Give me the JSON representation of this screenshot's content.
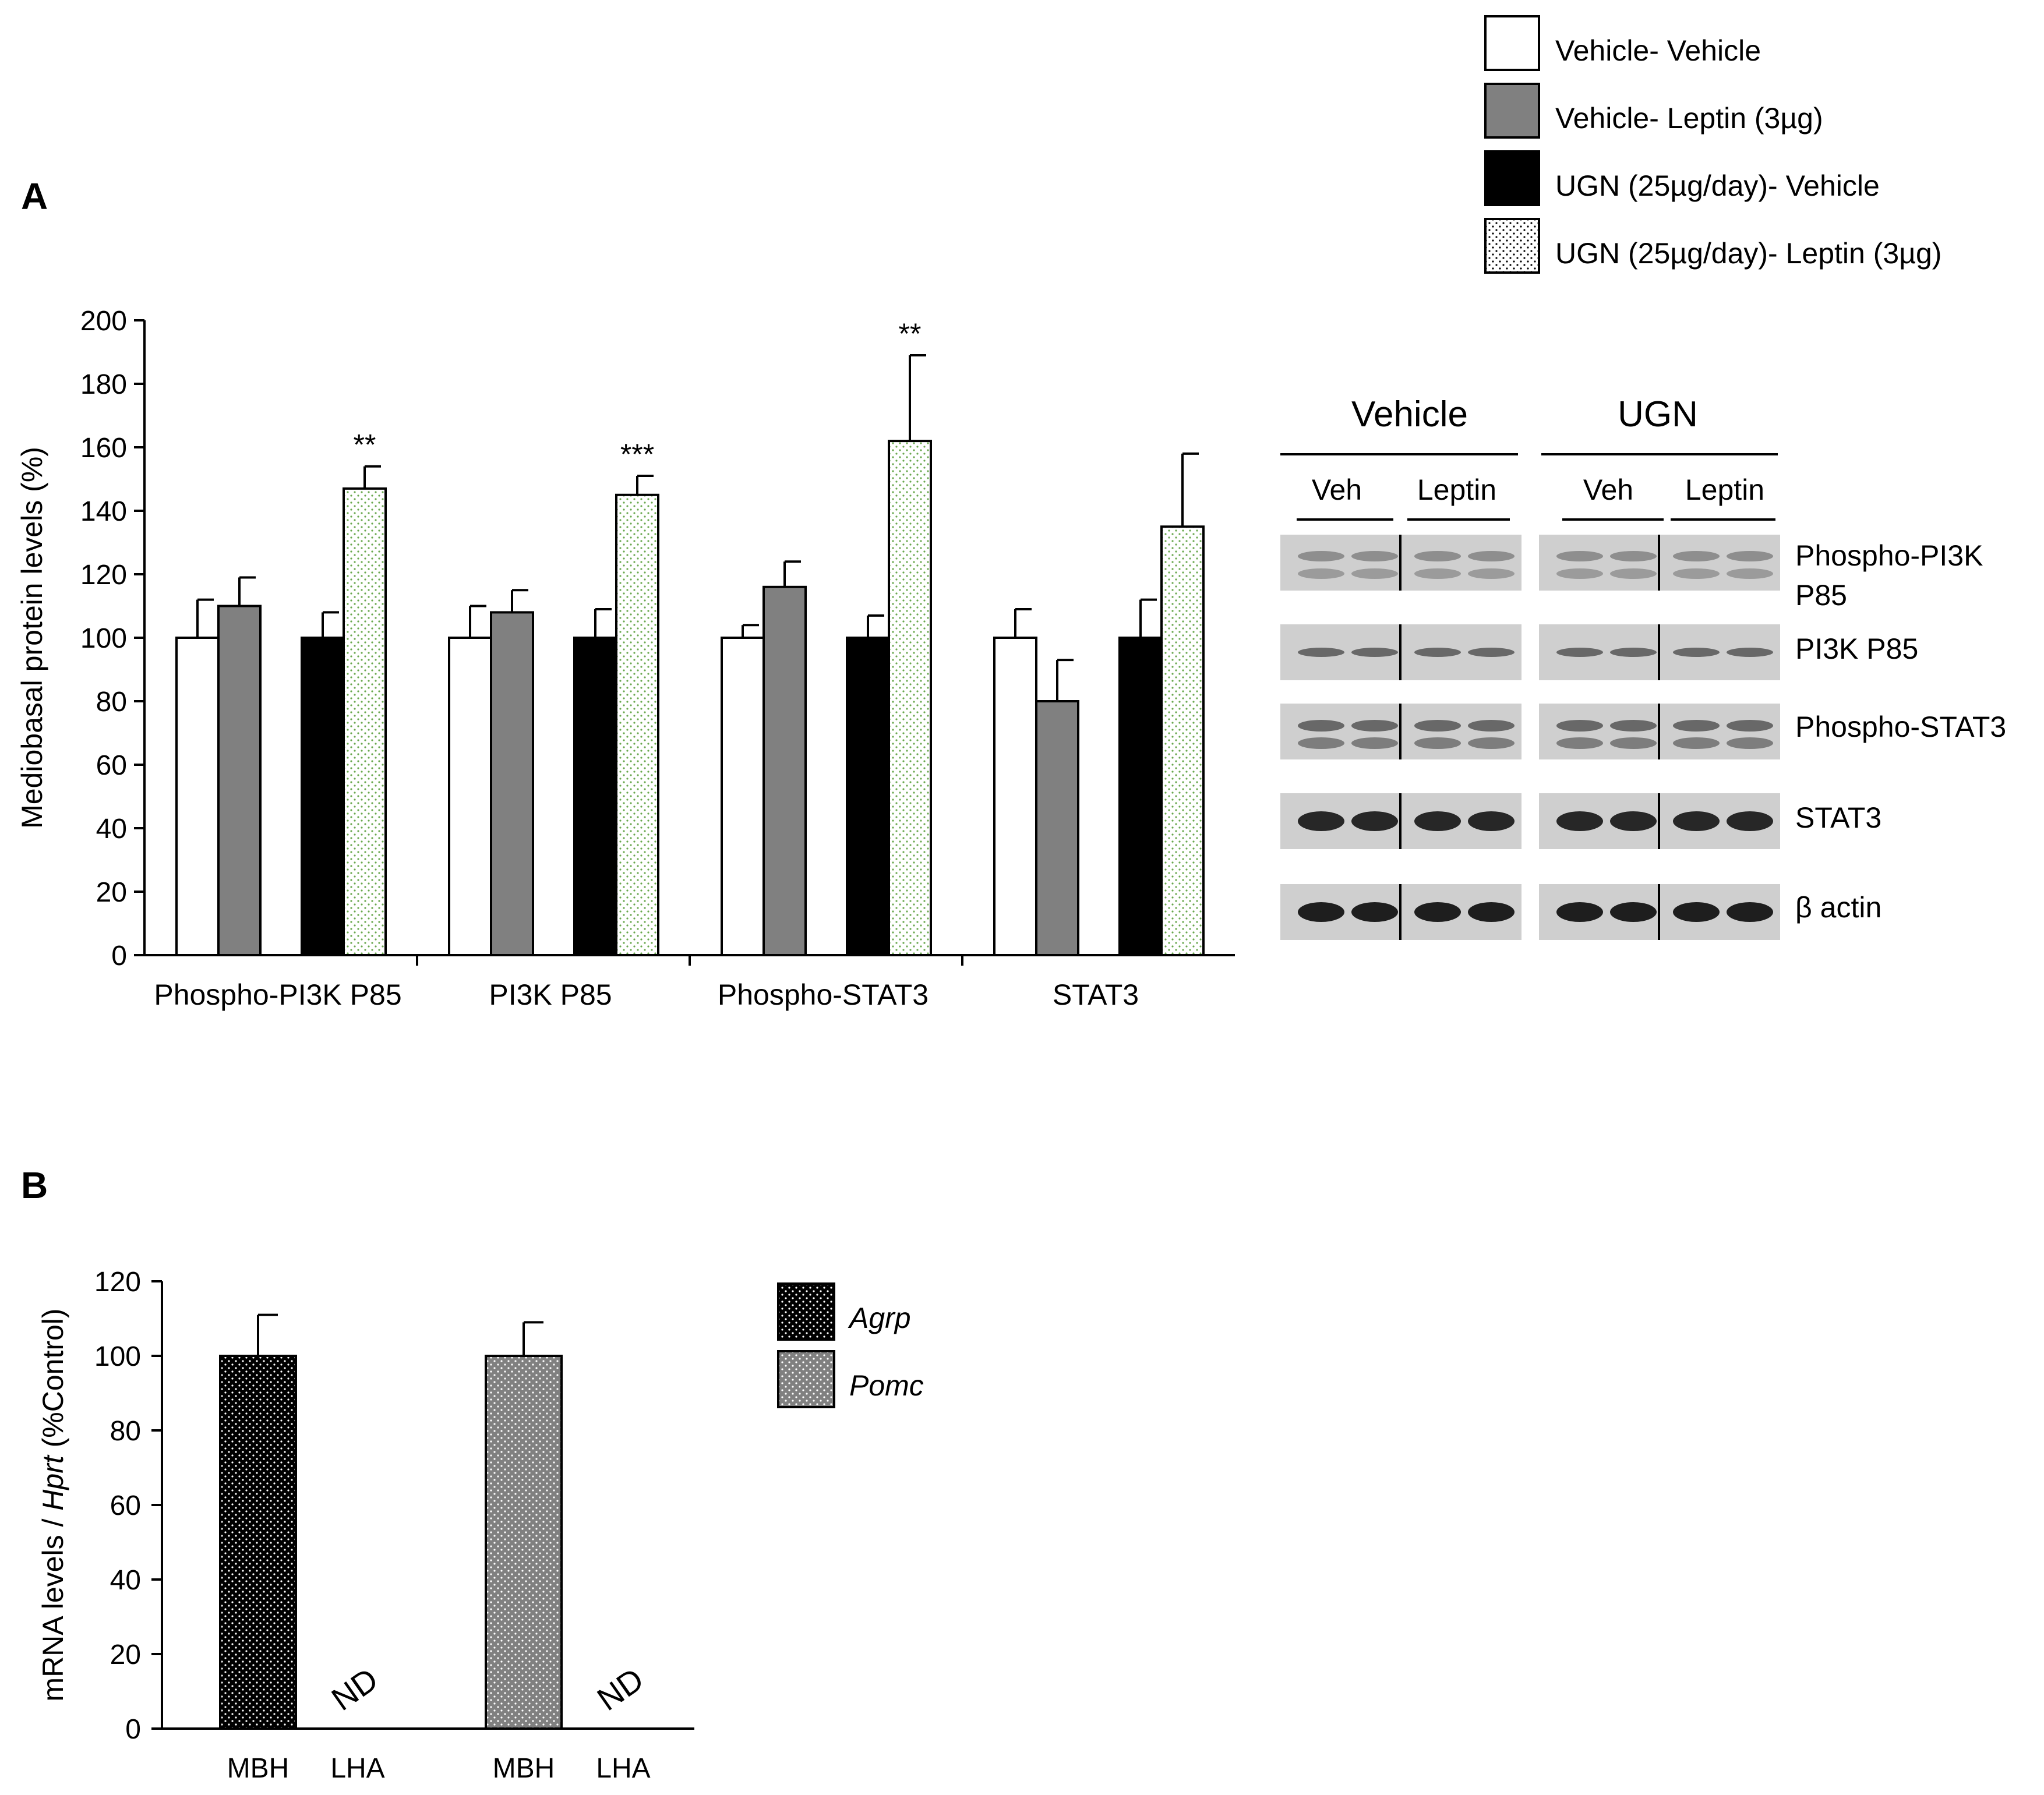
{
  "panel_a_label": "A",
  "panel_b_label": "B",
  "legend_a": [
    {
      "label": "Vehicle- Vehicle",
      "fill": "white"
    },
    {
      "label": "Vehicle- Leptin (3µg)",
      "fill": "gray"
    },
    {
      "label": "UGN (25µg/day)- Vehicle",
      "fill": "black"
    },
    {
      "label": "UGN (25µg/day)- Leptin (3µg)",
      "fill": "dots"
    }
  ],
  "legend_b": [
    {
      "label": "Agrp",
      "fill": "black-dots"
    },
    {
      "label": "Pomc",
      "fill": "gray-dots"
    }
  ],
  "blot": {
    "group_vehicle": "Vehicle",
    "group_ugn": "UGN",
    "veh_1": "Veh",
    "leptin_1": "Leptin",
    "veh_2": "Veh",
    "leptin_2": "Leptin",
    "rows": [
      {
        "label_line1": "Phospho-PI3K",
        "label_line2": "P85"
      },
      {
        "label_line1": "PI3K P85",
        "label_line2": ""
      },
      {
        "label_line1": "Phospho-STAT3",
        "label_line2": ""
      },
      {
        "label_line1": "STAT3",
        "label_line2": ""
      },
      {
        "label_line1": "β actin",
        "label_line2": ""
      }
    ]
  },
  "colors": {
    "gray_bar": "#808080",
    "dots_green": "#6aa84f",
    "blot_bg": "#cfcfcf",
    "band_dark": "#2a2a2a"
  },
  "chart_data": [
    {
      "id": "A",
      "type": "bar",
      "title": "",
      "xlabel": "",
      "ylabel": "Mediobasal protein levels (%)",
      "ylim": [
        0,
        200
      ],
      "yticks": [
        0,
        20,
        40,
        60,
        80,
        100,
        120,
        140,
        160,
        180,
        200
      ],
      "categories": [
        "Phospho-PI3K P85",
        "PI3K P85",
        "Phospho-STAT3",
        "STAT3"
      ],
      "series": [
        {
          "name": "Vehicle- Vehicle",
          "values": [
            100,
            100,
            100,
            100
          ],
          "errors": [
            12,
            10,
            4,
            9
          ]
        },
        {
          "name": "Vehicle- Leptin (3µg)",
          "values": [
            110,
            108,
            116,
            80
          ],
          "errors": [
            9,
            7,
            8,
            13
          ]
        },
        {
          "name": "UGN (25µg/day)- Vehicle",
          "values": [
            100,
            100,
            100,
            100
          ],
          "errors": [
            8,
            9,
            7,
            12
          ]
        },
        {
          "name": "UGN (25µg/day)- Leptin (3µg)",
          "values": [
            147,
            145,
            162,
            135
          ],
          "errors": [
            7,
            6,
            27,
            23
          ]
        }
      ],
      "annotations": [
        {
          "category": "Phospho-PI3K P85",
          "series": "UGN (25µg/day)- Leptin (3µg)",
          "text": "**"
        },
        {
          "category": "PI3K P85",
          "series": "UGN (25µg/day)- Leptin (3µg)",
          "text": "***"
        },
        {
          "category": "Phospho-STAT3",
          "series": "UGN (25µg/day)- Leptin (3µg)",
          "text": "**"
        }
      ]
    },
    {
      "id": "B",
      "type": "bar",
      "title": "",
      "xlabel": "",
      "ylabel_prefix": "mRNA levels / ",
      "ylabel_italic": "Hprt",
      "ylabel_suffix": " (%Control)",
      "ylim": [
        0,
        120
      ],
      "yticks": [
        0,
        20,
        40,
        60,
        80,
        100,
        120
      ],
      "groups": [
        {
          "series": "Agrp",
          "categories": [
            "MBH",
            "LHA"
          ],
          "values": [
            100,
            null
          ],
          "errors": [
            11,
            null
          ],
          "missing_label": "ND"
        },
        {
          "series": "Pomc",
          "categories": [
            "MBH",
            "LHA"
          ],
          "values": [
            100,
            null
          ],
          "errors": [
            9,
            null
          ],
          "missing_label": "ND"
        }
      ]
    }
  ]
}
